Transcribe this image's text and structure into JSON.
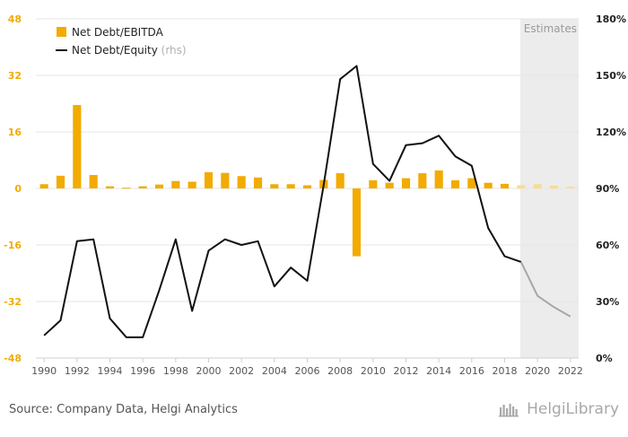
{
  "chart_data": {
    "type": "bar+line",
    "estimates_label": "Estimates",
    "estimates_from_year": 2019,
    "categories": [
      1990,
      1991,
      1992,
      1993,
      1994,
      1995,
      1996,
      1997,
      1998,
      1999,
      2000,
      2001,
      2002,
      2003,
      2004,
      2005,
      2006,
      2007,
      2008,
      2009,
      2010,
      2011,
      2012,
      2013,
      2014,
      2015,
      2016,
      2017,
      2018,
      2019,
      2020,
      2021,
      2022
    ],
    "x_tick_labels": [
      "1990",
      "1992",
      "1994",
      "1996",
      "1998",
      "2000",
      "2002",
      "2004",
      "2006",
      "2008",
      "2010",
      "2012",
      "2014",
      "2016",
      "2018",
      "2020",
      "2022"
    ],
    "series": [
      {
        "name": "Net Debt/EBITDA",
        "type": "bar",
        "axis": "left",
        "color": "#f2ab00",
        "estimate_color": "#f9dc91",
        "values": [
          1.2,
          3.6,
          23.6,
          3.8,
          0.6,
          0.2,
          0.6,
          1.1,
          2.1,
          1.9,
          4.6,
          4.4,
          3.5,
          3.1,
          1.2,
          1.2,
          0.9,
          2.4,
          4.3,
          -19.2,
          2.3,
          1.6,
          2.9,
          4.3,
          5.1,
          2.3,
          2.9,
          1.6,
          1.3,
          0.9,
          1.2,
          0.8,
          0.5
        ]
      },
      {
        "name": "Net Debt/Equity",
        "name_suffix": "(rhs)",
        "type": "line",
        "axis": "right",
        "unit": "%",
        "color": "#111111",
        "estimate_color": "#a6a6a6",
        "values": [
          12,
          20,
          62,
          63,
          21,
          11,
          11,
          36,
          63,
          25,
          57,
          63,
          60,
          62,
          38,
          48,
          41,
          92,
          148,
          155,
          103,
          94,
          113,
          114,
          118,
          107,
          102,
          69,
          54,
          51,
          33,
          27,
          22
        ]
      }
    ],
    "y_left": {
      "ylim": [
        -48,
        48
      ],
      "ticks": [
        48,
        32,
        16,
        0,
        -16,
        -32,
        -48
      ],
      "tick_color": "#f2ab00"
    },
    "y_right": {
      "ylim": [
        0,
        180
      ],
      "ticks": [
        "180%",
        "150%",
        "120%",
        "90%",
        "60%",
        "30%",
        "0%"
      ],
      "tick_color": "#222222"
    },
    "grid": true,
    "legend_position": "top-left"
  },
  "footer": {
    "source": "Source: Company Data, Helgi Analytics",
    "brand": "HelgiLibrary"
  }
}
